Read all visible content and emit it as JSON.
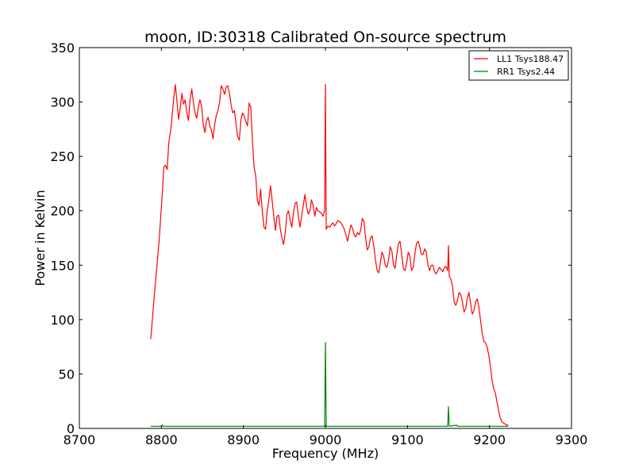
{
  "chart_data": {
    "type": "line",
    "title": "moon, ID:30318 Calibrated On-source spectrum",
    "xlabel": "Frequency (MHz)",
    "ylabel": "Power in Kelvin",
    "xlim": [
      8700,
      9300
    ],
    "ylim": [
      0,
      350
    ],
    "xticks": [
      8700,
      8800,
      8900,
      9000,
      9100,
      9200,
      9300
    ],
    "yticks": [
      0,
      50,
      100,
      150,
      200,
      250,
      300,
      350
    ],
    "grid": false,
    "legend_position": "top-right",
    "series": [
      {
        "name": "LL1 Tsys188.47",
        "color": "#ff0000",
        "points": [
          [
            8787,
            82
          ],
          [
            8792,
            128
          ],
          [
            8797,
            170
          ],
          [
            8801,
            215
          ],
          [
            8803,
            240
          ],
          [
            8805,
            242
          ],
          [
            8807,
            238
          ],
          [
            8809,
            262
          ],
          [
            8812,
            278
          ],
          [
            8815,
            303
          ],
          [
            8817,
            316
          ],
          [
            8819,
            300
          ],
          [
            8821,
            284
          ],
          [
            8823,
            295
          ],
          [
            8825,
            308
          ],
          [
            8827,
            298
          ],
          [
            8829,
            302
          ],
          [
            8831,
            290
          ],
          [
            8833,
            283
          ],
          [
            8835,
            302
          ],
          [
            8837,
            312
          ],
          [
            8839,
            300
          ],
          [
            8841,
            290
          ],
          [
            8843,
            285
          ],
          [
            8845,
            295
          ],
          [
            8847,
            302
          ],
          [
            8849,
            296
          ],
          [
            8851,
            280
          ],
          [
            8853,
            272
          ],
          [
            8855,
            283
          ],
          [
            8857,
            286
          ],
          [
            8859,
            278
          ],
          [
            8861,
            274
          ],
          [
            8863,
            266
          ],
          [
            8865,
            280
          ],
          [
            8867,
            288
          ],
          [
            8869,
            292
          ],
          [
            8871,
            300
          ],
          [
            8873,
            315
          ],
          [
            8875,
            312
          ],
          [
            8877,
            307
          ],
          [
            8879,
            314
          ],
          [
            8881,
            315
          ],
          [
            8883,
            308
          ],
          [
            8885,
            297
          ],
          [
            8887,
            290
          ],
          [
            8889,
            292
          ],
          [
            8891,
            280
          ],
          [
            8893,
            268
          ],
          [
            8895,
            265
          ],
          [
            8897,
            284
          ],
          [
            8899,
            290
          ],
          [
            8901,
            287
          ],
          [
            8903,
            282
          ],
          [
            8905,
            278
          ],
          [
            8907,
            299
          ],
          [
            8909,
            295
          ],
          [
            8911,
            265
          ],
          [
            8913,
            240
          ],
          [
            8915,
            232
          ],
          [
            8917,
            210
          ],
          [
            8919,
            205
          ],
          [
            8921,
            220
          ],
          [
            8923,
            200
          ],
          [
            8925,
            185
          ],
          [
            8927,
            183
          ],
          [
            8929,
            200
          ],
          [
            8931,
            210
          ],
          [
            8933,
            223
          ],
          [
            8935,
            210
          ],
          [
            8937,
            195
          ],
          [
            8939,
            182
          ],
          [
            8941,
            195
          ],
          [
            8943,
            196
          ],
          [
            8945,
            183
          ],
          [
            8947,
            175
          ],
          [
            8949,
            169
          ],
          [
            8951,
            180
          ],
          [
            8953,
            197
          ],
          [
            8955,
            200
          ],
          [
            8957,
            191
          ],
          [
            8959,
            185
          ],
          [
            8961,
            198
          ],
          [
            8963,
            207
          ],
          [
            8965,
            208
          ],
          [
            8967,
            195
          ],
          [
            8969,
            185
          ],
          [
            8971,
            195
          ],
          [
            8973,
            205
          ],
          [
            8975,
            215
          ],
          [
            8977,
            204
          ],
          [
            8979,
            197
          ],
          [
            8981,
            200
          ],
          [
            8983,
            210
          ],
          [
            8985,
            205
          ],
          [
            8987,
            195
          ],
          [
            8989,
            203
          ],
          [
            8991,
            200
          ],
          [
            8993,
            199
          ],
          [
            8995,
            198
          ],
          [
            8997,
            195
          ],
          [
            8999,
            200
          ],
          [
            9000,
            316
          ],
          [
            9001,
            183
          ],
          [
            9003,
            186
          ],
          [
            9005,
            185
          ],
          [
            9007,
            187
          ],
          [
            9009,
            189
          ],
          [
            9011,
            186
          ],
          [
            9013,
            188
          ],
          [
            9015,
            191
          ],
          [
            9017,
            190
          ],
          [
            9019,
            189
          ],
          [
            9021,
            186
          ],
          [
            9023,
            183
          ],
          [
            9025,
            178
          ],
          [
            9027,
            172
          ],
          [
            9029,
            180
          ],
          [
            9031,
            187
          ],
          [
            9033,
            184
          ],
          [
            9035,
            178
          ],
          [
            9037,
            176
          ],
          [
            9039,
            180
          ],
          [
            9041,
            178
          ],
          [
            9043,
            182
          ],
          [
            9045,
            193
          ],
          [
            9047,
            190
          ],
          [
            9049,
            175
          ],
          [
            9051,
            164
          ],
          [
            9053,
            167
          ],
          [
            9055,
            175
          ],
          [
            9057,
            177
          ],
          [
            9059,
            167
          ],
          [
            9061,
            155
          ],
          [
            9063,
            145
          ],
          [
            9065,
            143
          ],
          [
            9067,
            152
          ],
          [
            9069,
            162
          ],
          [
            9071,
            158
          ],
          [
            9073,
            150
          ],
          [
            9075,
            148
          ],
          [
            9077,
            155
          ],
          [
            9079,
            167
          ],
          [
            9081,
            163
          ],
          [
            9083,
            150
          ],
          [
            9085,
            147
          ],
          [
            9087,
            160
          ],
          [
            9089,
            170
          ],
          [
            9091,
            172
          ],
          [
            9093,
            160
          ],
          [
            9095,
            147
          ],
          [
            9097,
            145
          ],
          [
            9099,
            152
          ],
          [
            9101,
            162
          ],
          [
            9103,
            158
          ],
          [
            9105,
            145
          ],
          [
            9107,
            148
          ],
          [
            9109,
            160
          ],
          [
            9111,
            170
          ],
          [
            9113,
            172
          ],
          [
            9115,
            167
          ],
          [
            9117,
            160
          ],
          [
            9119,
            160
          ],
          [
            9121,
            165
          ],
          [
            9123,
            162
          ],
          [
            9125,
            150
          ],
          [
            9127,
            145
          ],
          [
            9129,
            150
          ],
          [
            9131,
            150
          ],
          [
            9133,
            144
          ],
          [
            9135,
            142
          ],
          [
            9137,
            145
          ],
          [
            9139,
            148
          ],
          [
            9141,
            146
          ],
          [
            9143,
            144
          ],
          [
            9145,
            148
          ],
          [
            9147,
            149
          ],
          [
            9149,
            145
          ],
          [
            9150,
            168
          ],
          [
            9151,
            140
          ],
          [
            9153,
            137
          ],
          [
            9155,
            130
          ],
          [
            9157,
            116
          ],
          [
            9159,
            113
          ],
          [
            9161,
            118
          ],
          [
            9163,
            125
          ],
          [
            9165,
            123
          ],
          [
            9167,
            116
          ],
          [
            9169,
            107
          ],
          [
            9171,
            110
          ],
          [
            9173,
            120
          ],
          [
            9175,
            125
          ],
          [
            9177,
            115
          ],
          [
            9179,
            105
          ],
          [
            9181,
            108
          ],
          [
            9183,
            116
          ],
          [
            9185,
            119
          ],
          [
            9187,
            112
          ],
          [
            9189,
            100
          ],
          [
            9191,
            88
          ],
          [
            9193,
            80
          ],
          [
            9195,
            79
          ],
          [
            9197,
            75
          ],
          [
            9199,
            68
          ],
          [
            9201,
            58
          ],
          [
            9203,
            45
          ],
          [
            9205,
            37
          ],
          [
            9207,
            33
          ],
          [
            9209,
            25
          ],
          [
            9211,
            17
          ],
          [
            9213,
            10
          ],
          [
            9215,
            6
          ],
          [
            9217,
            5
          ],
          [
            9219,
            4
          ],
          [
            9221,
            3
          ],
          [
            9223,
            3
          ]
        ]
      },
      {
        "name": "RR1 Tsys2.44",
        "color": "#008000",
        "points": [
          [
            8787,
            2
          ],
          [
            8800,
            2
          ],
          [
            8801,
            3
          ],
          [
            8802,
            2
          ],
          [
            8850,
            2
          ],
          [
            8900,
            2
          ],
          [
            8960,
            2
          ],
          [
            8999,
            2
          ],
          [
            9000,
            79
          ],
          [
            9001,
            2
          ],
          [
            9050,
            2
          ],
          [
            9100,
            2
          ],
          [
            9149,
            2
          ],
          [
            9150,
            20
          ],
          [
            9151,
            2
          ],
          [
            9160,
            3
          ],
          [
            9161,
            2
          ],
          [
            9200,
            2
          ],
          [
            9223,
            2
          ]
        ]
      }
    ]
  }
}
